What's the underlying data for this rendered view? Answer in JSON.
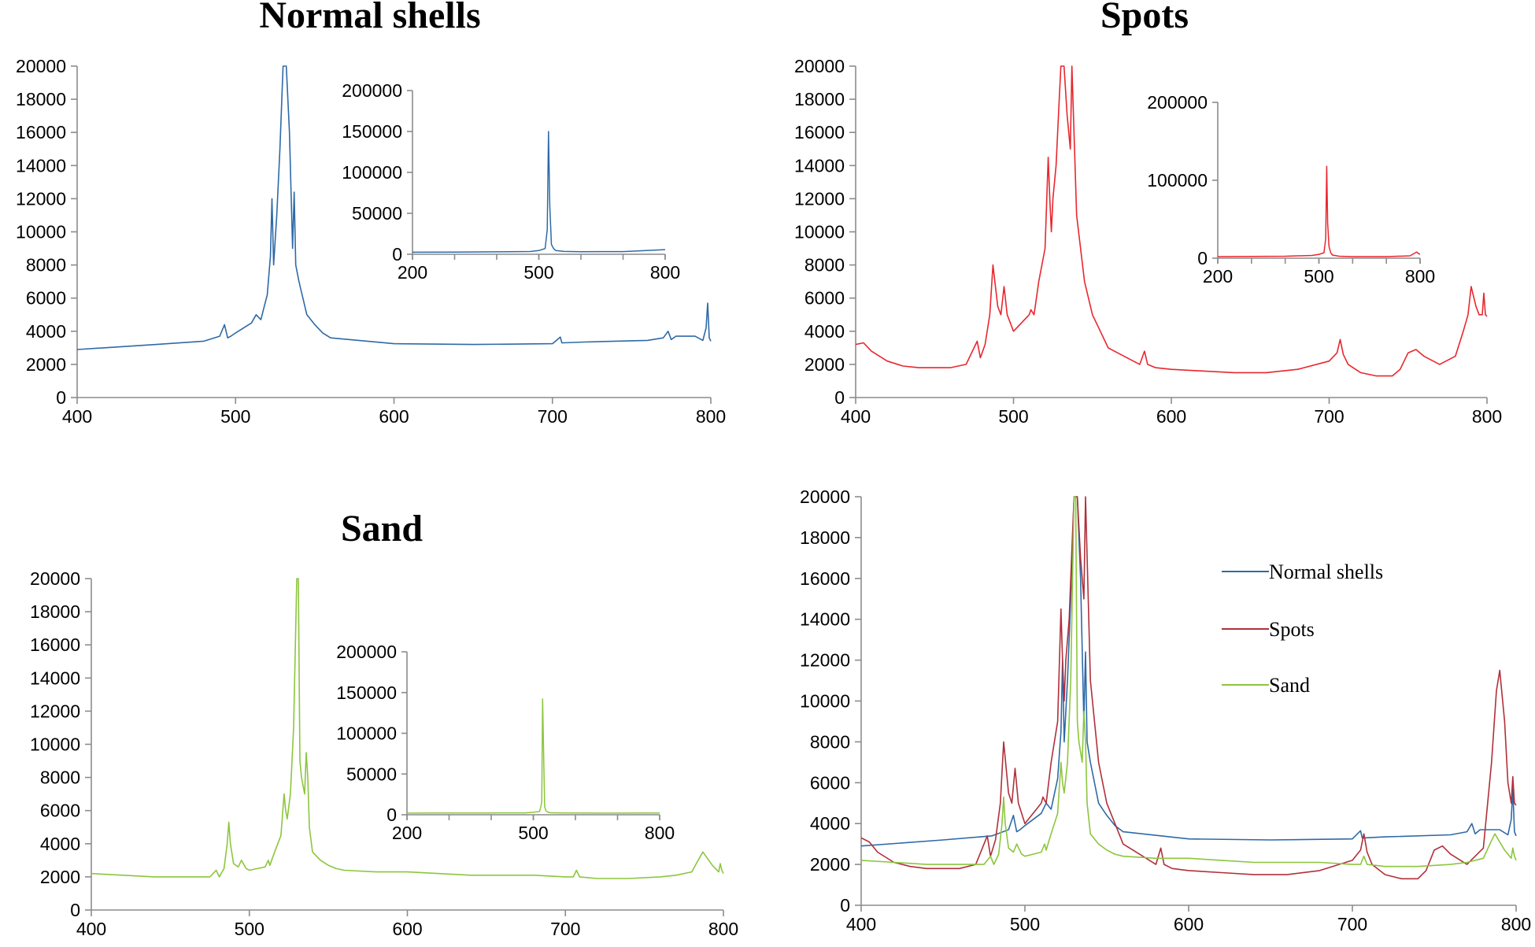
{
  "chart_data": [
    {
      "id": "normal-shells",
      "type": "line",
      "title": "Normal shells",
      "xlim": [
        400,
        800
      ],
      "ylim": [
        0,
        20000
      ],
      "xticks": [
        "400",
        "500",
        "600",
        "700",
        "800"
      ],
      "yticks": [
        "0",
        "2000",
        "4000",
        "6000",
        "8000",
        "10000",
        "12000",
        "14000",
        "16000",
        "18000",
        "20000"
      ],
      "series": [
        {
          "name": "Normal shells",
          "color": "#2e6aa7",
          "x": [
            400,
            450,
            480,
            490,
            493,
            495,
            497,
            500,
            510,
            513,
            516,
            520,
            522,
            523,
            524,
            526,
            528,
            530,
            532,
            534,
            536,
            537,
            538,
            540,
            545,
            550,
            555,
            560,
            600,
            650,
            700,
            705,
            706,
            707,
            720,
            760,
            770,
            773,
            775,
            778,
            790,
            795,
            797,
            798,
            799,
            800
          ],
          "y": [
            2900,
            3200,
            3400,
            3700,
            4400,
            3600,
            3700,
            3900,
            4500,
            5000,
            4700,
            6200,
            8500,
            12000,
            8000,
            11000,
            15000,
            20000,
            20000,
            16000,
            9000,
            12400,
            8000,
            7000,
            5000,
            4400,
            3900,
            3600,
            3250,
            3200,
            3250,
            3650,
            3300,
            3300,
            3350,
            3450,
            3600,
            4000,
            3500,
            3700,
            3700,
            3450,
            4200,
            5700,
            3600,
            3400
          ]
        }
      ],
      "inset": {
        "xlim": [
          200,
          800
        ],
        "ylim": [
          0,
          200000
        ],
        "xticks": [
          "200",
          "500",
          "800"
        ],
        "yticks": [
          "0",
          "50000",
          "100000",
          "150000",
          "200000"
        ],
        "x": [
          200,
          300,
          400,
          480,
          500,
          515,
          520,
          523,
          526,
          530,
          535,
          540,
          560,
          600,
          700,
          800
        ],
        "y": [
          2500,
          2600,
          3000,
          3400,
          4500,
          7000,
          30000,
          150000,
          60000,
          12000,
          7000,
          4500,
          3500,
          3200,
          3300,
          5700
        ]
      }
    },
    {
      "id": "spots",
      "type": "line",
      "title": "Spots",
      "xlim": [
        400,
        800
      ],
      "ylim": [
        0,
        20000
      ],
      "xticks": [
        "400",
        "500",
        "600",
        "700",
        "800"
      ],
      "yticks": [
        "0",
        "2000",
        "4000",
        "6000",
        "8000",
        "10000",
        "12000",
        "14000",
        "16000",
        "18000",
        "20000"
      ],
      "series": [
        {
          "name": "Spots",
          "color": "#e8272e",
          "x": [
            400,
            405,
            410,
            420,
            430,
            440,
            460,
            470,
            477,
            479,
            482,
            485,
            487,
            490,
            492,
            494,
            496,
            500,
            505,
            510,
            511,
            513,
            516,
            520,
            522,
            523,
            524,
            525,
            527,
            529,
            530,
            532,
            534,
            536,
            537,
            540,
            545,
            550,
            555,
            560,
            570,
            580,
            583,
            585,
            590,
            600,
            620,
            640,
            660,
            680,
            700,
            705,
            707,
            709,
            712,
            720,
            730,
            740,
            745,
            750,
            755,
            760,
            770,
            780,
            785,
            788,
            790,
            793,
            795,
            797,
            798,
            799,
            800
          ],
          "y": [
            3200,
            3300,
            2800,
            2200,
            1900,
            1800,
            1800,
            2000,
            3400,
            2400,
            3200,
            5000,
            8000,
            5500,
            5000,
            6700,
            5000,
            4000,
            4500,
            5000,
            5300,
            5000,
            7000,
            9000,
            14500,
            12000,
            10000,
            12000,
            14000,
            18000,
            20000,
            20000,
            17000,
            15000,
            20000,
            11000,
            7000,
            5000,
            4000,
            3000,
            2500,
            2000,
            2800,
            2000,
            1800,
            1700,
            1600,
            1500,
            1500,
            1700,
            2200,
            2700,
            3500,
            2600,
            2000,
            1500,
            1300,
            1300,
            1700,
            2700,
            2900,
            2500,
            2000,
            2500,
            4000,
            5000,
            6700,
            5500,
            5000,
            5000,
            6300,
            5000,
            4900
          ]
        }
      ],
      "inset": {
        "xlim": [
          200,
          800
        ],
        "ylim": [
          0,
          200000
        ],
        "xticks": [
          "200",
          "500",
          "800"
        ],
        "yticks": [
          "0",
          "100000",
          "200000"
        ],
        "x": [
          200,
          300,
          400,
          480,
          500,
          515,
          520,
          523,
          526,
          530,
          535,
          540,
          560,
          600,
          700,
          770,
          790,
          795,
          800
        ],
        "y": [
          2000,
          2200,
          2500,
          3500,
          5000,
          7000,
          25000,
          118000,
          45000,
          15000,
          7000,
          4000,
          2500,
          2000,
          2000,
          3000,
          8000,
          6000,
          4900
        ]
      }
    },
    {
      "id": "sand",
      "type": "line",
      "title": "Sand",
      "xlim": [
        400,
        800
      ],
      "ylim": [
        0,
        20000
      ],
      "xticks": [
        "400",
        "500",
        "600",
        "700",
        "800"
      ],
      "yticks": [
        "0",
        "2000",
        "4000",
        "6000",
        "8000",
        "10000",
        "12000",
        "14000",
        "16000",
        "18000",
        "20000"
      ],
      "series": [
        {
          "name": "Sand",
          "color": "#8cc63e",
          "x": [
            400,
            420,
            440,
            460,
            475,
            479,
            481,
            484,
            486,
            487,
            488,
            490,
            493,
            495,
            498,
            500,
            505,
            510,
            512,
            513,
            516,
            520,
            522,
            523,
            524,
            526,
            528,
            530,
            531,
            532,
            533,
            535,
            536,
            537,
            538,
            540,
            545,
            550,
            555,
            560,
            580,
            600,
            620,
            640,
            660,
            680,
            700,
            705,
            707,
            709,
            720,
            740,
            760,
            770,
            780,
            784,
            787,
            790,
            793,
            795,
            797,
            798,
            799,
            800
          ],
          "y": [
            2200,
            2100,
            2000,
            2000,
            2000,
            2400,
            2000,
            2500,
            4000,
            5300,
            4000,
            2800,
            2600,
            3000,
            2500,
            2400,
            2500,
            2600,
            3000,
            2700,
            3500,
            4500,
            7000,
            6000,
            5500,
            7000,
            11000,
            20000,
            20000,
            9000,
            8000,
            7000,
            9500,
            8000,
            5000,
            3500,
            3000,
            2700,
            2500,
            2400,
            2300,
            2300,
            2200,
            2100,
            2100,
            2100,
            2000,
            2000,
            2400,
            2000,
            1900,
            1900,
            2000,
            2100,
            2300,
            3000,
            3500,
            3100,
            2700,
            2500,
            2300,
            2800,
            2400,
            2200
          ]
        }
      ],
      "inset": {
        "xlim": [
          200,
          800
        ],
        "ylim": [
          0,
          200000
        ],
        "xticks": [
          "200",
          "500",
          "800"
        ],
        "yticks": [
          "0",
          "50000",
          "100000",
          "150000",
          "200000"
        ],
        "x": [
          200,
          300,
          400,
          480,
          500,
          515,
          520,
          522,
          525,
          527,
          530,
          535,
          540,
          560,
          600,
          700,
          800
        ],
        "y": [
          2000,
          2100,
          2200,
          2300,
          3000,
          4000,
          15000,
          142000,
          60000,
          10000,
          5000,
          3000,
          2500,
          2300,
          2200,
          2000,
          2200
        ]
      }
    },
    {
      "id": "combined",
      "type": "line",
      "title": "",
      "xlim": [
        400,
        800
      ],
      "ylim": [
        0,
        20000
      ],
      "xticks": [
        "400",
        "500",
        "600",
        "700",
        "800"
      ],
      "yticks": [
        "0",
        "2000",
        "4000",
        "6000",
        "8000",
        "10000",
        "12000",
        "14000",
        "16000",
        "18000",
        "20000"
      ],
      "legend_position": "top-right",
      "series": [
        {
          "name": "Normal shells",
          "color": "#2e6aa7",
          "x": [
            400,
            450,
            480,
            490,
            493,
            495,
            497,
            500,
            510,
            513,
            516,
            520,
            522,
            523,
            524,
            526,
            528,
            530,
            532,
            534,
            536,
            537,
            538,
            540,
            545,
            550,
            555,
            560,
            600,
            650,
            700,
            705,
            706,
            707,
            720,
            760,
            770,
            773,
            775,
            778,
            790,
            795,
            797,
            798,
            799,
            800
          ],
          "y": [
            2900,
            3200,
            3400,
            3700,
            4400,
            3600,
            3700,
            3900,
            4500,
            5000,
            4700,
            6200,
            8500,
            12000,
            8000,
            11000,
            15000,
            20000,
            20000,
            16000,
            9000,
            12400,
            8000,
            7000,
            5000,
            4400,
            3900,
            3600,
            3250,
            3200,
            3250,
            3650,
            3300,
            3300,
            3350,
            3450,
            3600,
            4000,
            3500,
            3700,
            3700,
            3450,
            4200,
            5700,
            3600,
            3400
          ]
        },
        {
          "name": "Spots",
          "color": "#b0303a",
          "x": [
            400,
            405,
            410,
            420,
            430,
            440,
            460,
            470,
            477,
            479,
            482,
            485,
            487,
            490,
            492,
            494,
            496,
            500,
            505,
            510,
            511,
            513,
            516,
            520,
            522,
            523,
            524,
            525,
            527,
            529,
            530,
            532,
            534,
            536,
            537,
            540,
            545,
            550,
            555,
            560,
            570,
            580,
            583,
            585,
            590,
            600,
            620,
            640,
            660,
            680,
            700,
            705,
            707,
            709,
            712,
            720,
            730,
            740,
            745,
            750,
            755,
            760,
            770,
            780,
            785,
            788,
            790,
            793,
            795,
            797,
            798,
            799,
            800
          ],
          "y": [
            3300,
            3100,
            2600,
            2100,
            1900,
            1800,
            1800,
            2000,
            3400,
            2400,
            3200,
            5000,
            8000,
            5500,
            5000,
            6700,
            5000,
            4000,
            4500,
            5000,
            5300,
            5000,
            7000,
            9000,
            14500,
            12000,
            10000,
            12000,
            14000,
            18000,
            20000,
            20000,
            17000,
            15000,
            20000,
            11000,
            7000,
            5000,
            4000,
            3000,
            2500,
            2000,
            2800,
            2000,
            1800,
            1700,
            1600,
            1500,
            1500,
            1700,
            2200,
            2700,
            3500,
            2600,
            2000,
            1500,
            1300,
            1300,
            1700,
            2700,
            2900,
            2500,
            2000,
            2800,
            7000,
            10500,
            11500,
            9000,
            6000,
            5000,
            6300,
            5000,
            4900
          ]
        },
        {
          "name": "Sand",
          "color": "#8cc63e",
          "x": [
            400,
            420,
            440,
            460,
            475,
            479,
            481,
            484,
            486,
            487,
            488,
            490,
            493,
            495,
            498,
            500,
            505,
            510,
            512,
            513,
            516,
            520,
            522,
            523,
            524,
            526,
            528,
            530,
            531,
            532,
            533,
            535,
            536,
            537,
            538,
            540,
            545,
            550,
            555,
            560,
            580,
            600,
            620,
            640,
            660,
            680,
            700,
            705,
            707,
            709,
            720,
            740,
            760,
            770,
            780,
            784,
            787,
            790,
            793,
            795,
            797,
            798,
            799,
            800
          ],
          "y": [
            2200,
            2100,
            2000,
            2000,
            2000,
            2400,
            2000,
            2500,
            4000,
            5300,
            4000,
            2800,
            2600,
            3000,
            2500,
            2400,
            2500,
            2600,
            3000,
            2700,
            3500,
            4500,
            7000,
            6000,
            5500,
            7000,
            11000,
            20000,
            20000,
            9000,
            8000,
            7000,
            9500,
            8000,
            5000,
            3500,
            3000,
            2700,
            2500,
            2400,
            2300,
            2300,
            2200,
            2100,
            2100,
            2100,
            2000,
            2000,
            2400,
            2000,
            1900,
            1900,
            2000,
            2100,
            2300,
            3000,
            3500,
            3100,
            2700,
            2500,
            2300,
            2800,
            2400,
            2200
          ]
        }
      ]
    }
  ]
}
